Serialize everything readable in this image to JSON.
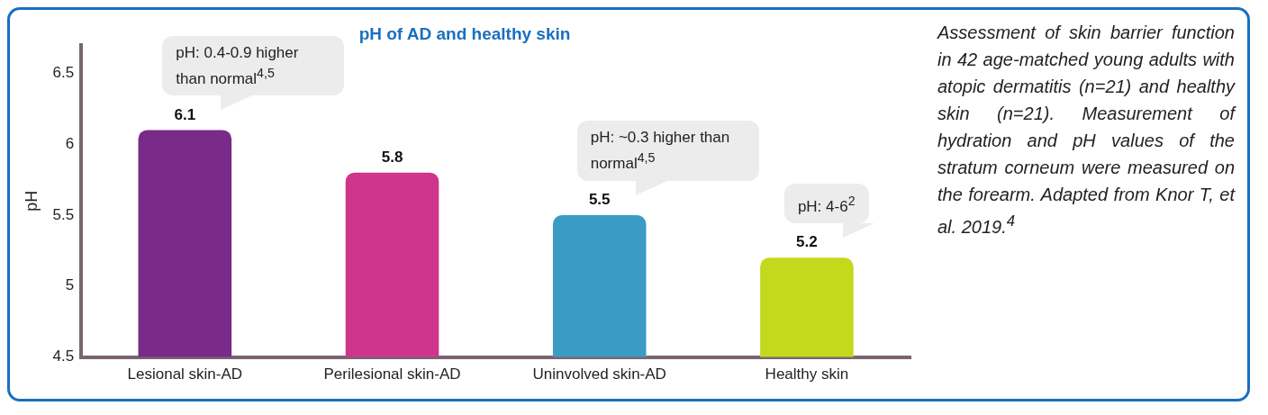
{
  "chart_data": {
    "type": "bar",
    "title": "pH of AD and healthy skin",
    "ylabel": "pH",
    "categories": [
      "Lesional skin-AD",
      "Perilesional skin-AD",
      "Uninvolved skin-AD",
      "Healthy skin"
    ],
    "values": [
      6.1,
      5.8,
      5.5,
      5.2
    ],
    "colors": [
      "#7a2a88",
      "#d0358e",
      "#3a9cc4",
      "#c4d81c"
    ],
    "data_labels": true,
    "ylim": [
      4.5,
      6.7
    ],
    "yticks": [
      4.5,
      5,
      5.5,
      6,
      6.5
    ],
    "grid": false,
    "legend": false,
    "annotations": [
      {
        "text": "pH: 0.4-0.9 higher than normal$^{4,5}$",
        "x": "Lesional skin-AD",
        "y": 6.1
      },
      {
        "text": "pH: ~0.3 higher than normal$^{4,5}$",
        "x": "Uninvolved skin-AD",
        "y": 5.5
      },
      {
        "text": "pH: 4-6$^{2}$",
        "x": "Healthy skin",
        "y": 5.2
      },
      "Assessment of skin barrier function in 42 age-matched young adults with atopic dermatitis (n=21) and healthy skin (n=21). Measurement of hydration and pH values of the stratum corneum were measured on the forearm. Adapted from Knor T, et al. 2019.$^{4}$"
    ]
  }
}
